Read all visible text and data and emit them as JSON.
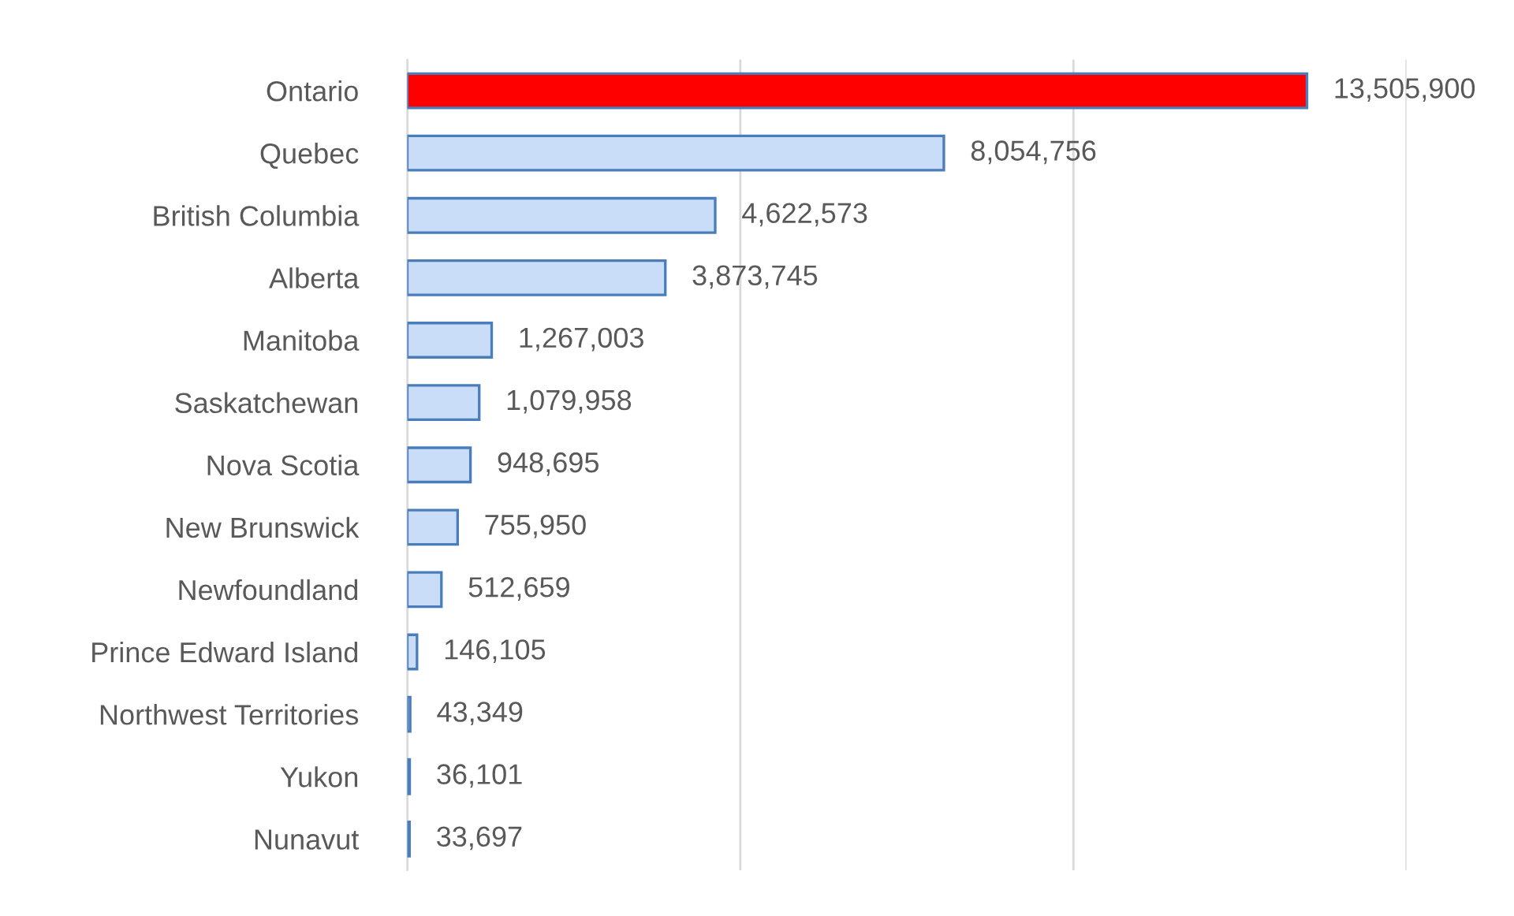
{
  "chart_data": {
    "type": "bar",
    "orientation": "horizontal",
    "categories": [
      "Ontario",
      "Quebec",
      "British Columbia",
      "Alberta",
      "Manitoba",
      "Saskatchewan",
      "Nova Scotia",
      "New Brunswick",
      "Newfoundland",
      "Prince Edward Island",
      "Northwest Territories",
      "Yukon",
      "Nunavut"
    ],
    "values": [
      13505900,
      8054756,
      4622573,
      3873745,
      1267003,
      1079958,
      948695,
      755950,
      512659,
      146105,
      43349,
      36101,
      33697
    ],
    "value_labels": [
      "13,505,900",
      "8,054,756",
      "4,622,573",
      "3,873,745",
      "1,267,003",
      "1,079,958",
      "948,695",
      "755,950",
      "512,659",
      "146,105",
      "43,349",
      "36,101",
      "33,697"
    ],
    "colors": [
      "#ff0000",
      "#c9dcf8",
      "#c9dcf8",
      "#c9dcf8",
      "#c9dcf8",
      "#c9dcf8",
      "#c9dcf8",
      "#c9dcf8",
      "#c9dcf8",
      "#c9dcf8",
      "#c9dcf8",
      "#c9dcf8",
      "#c9dcf8"
    ],
    "xlim": [
      0,
      15000000
    ],
    "xticks": [
      {
        "value": 0,
        "label": null
      },
      {
        "value": 5000000,
        "label": null
      },
      {
        "value": 10000000,
        "label": null
      },
      {
        "value": 15000000,
        "label": null
      }
    ],
    "grid": "x",
    "legend": false,
    "tick_labels": "y"
  }
}
